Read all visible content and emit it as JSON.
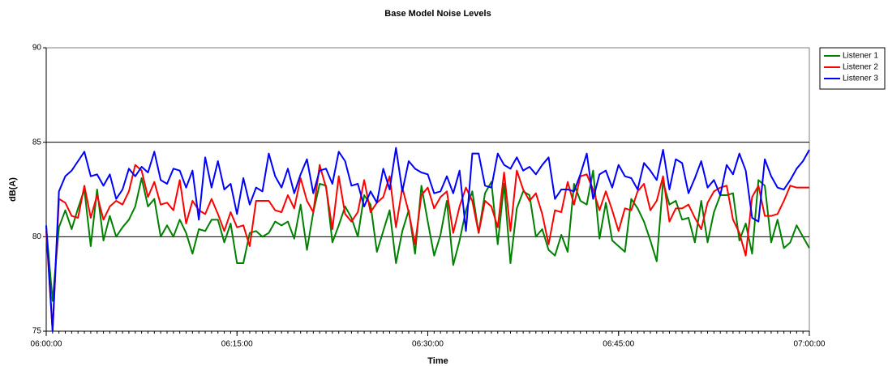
{
  "chart_data": {
    "type": "line",
    "title": "Base Model Noise Levels",
    "x_label": "Time",
    "y_label": "dB(A)",
    "x": [
      "06:00:00",
      "06:00:30",
      "06:01:00",
      "06:01:30",
      "06:02:00",
      "06:02:30",
      "06:03:00",
      "06:03:30",
      "06:04:00",
      "06:04:30",
      "06:05:00",
      "06:05:30",
      "06:06:00",
      "06:06:30",
      "06:07:00",
      "06:07:30",
      "06:08:00",
      "06:08:30",
      "06:09:00",
      "06:09:30",
      "06:10:00",
      "06:10:30",
      "06:11:00",
      "06:11:30",
      "06:12:00",
      "06:12:30",
      "06:13:00",
      "06:13:30",
      "06:14:00",
      "06:14:30",
      "06:15:00",
      "06:15:30",
      "06:16:00",
      "06:16:30",
      "06:17:00",
      "06:17:30",
      "06:18:00",
      "06:18:30",
      "06:19:00",
      "06:19:30",
      "06:20:00",
      "06:20:30",
      "06:21:00",
      "06:21:30",
      "06:22:00",
      "06:22:30",
      "06:23:00",
      "06:23:30",
      "06:24:00",
      "06:24:30",
      "06:25:00",
      "06:25:30",
      "06:26:00",
      "06:26:30",
      "06:27:00",
      "06:27:30",
      "06:28:00",
      "06:28:30",
      "06:29:00",
      "06:29:30",
      "06:30:00",
      "06:30:30",
      "06:31:00",
      "06:31:30",
      "06:32:00",
      "06:32:30",
      "06:33:00",
      "06:33:30",
      "06:34:00",
      "06:34:30",
      "06:35:00",
      "06:35:30",
      "06:36:00",
      "06:36:30",
      "06:37:00",
      "06:37:30",
      "06:38:00",
      "06:38:30",
      "06:39:00",
      "06:39:30",
      "06:40:00",
      "06:40:30",
      "06:41:00",
      "06:41:30",
      "06:42:00",
      "06:42:30",
      "06:43:00",
      "06:43:30",
      "06:44:00",
      "06:44:30",
      "06:45:00",
      "06:45:30",
      "06:46:00",
      "06:46:30",
      "06:47:00",
      "06:47:30",
      "06:48:00",
      "06:48:30",
      "06:49:00",
      "06:49:30",
      "06:50:00",
      "06:50:30",
      "06:51:00",
      "06:51:30",
      "06:52:00",
      "06:52:30",
      "06:53:00",
      "06:53:30",
      "06:54:00",
      "06:54:30",
      "06:55:00",
      "06:55:30",
      "06:56:00",
      "06:56:30",
      "06:57:00",
      "06:57:30",
      "06:58:00",
      "06:58:30",
      "06:59:00",
      "06:59:30",
      "07:00:00"
    ],
    "series": [
      {
        "name": "Listener 1",
        "color": "#008000",
        "values": [
          80.5,
          76.6,
          80.5,
          81.4,
          80.4,
          81.5,
          82.5,
          79.5,
          82.5,
          79.8,
          81.1,
          80.0,
          80.5,
          80.9,
          81.6,
          83.1,
          81.6,
          82.0,
          80.0,
          80.6,
          80.0,
          80.9,
          80.2,
          79.1,
          80.4,
          80.3,
          80.9,
          80.9,
          79.7,
          80.7,
          78.6,
          78.6,
          80.2,
          80.3,
          80.0,
          80.2,
          80.8,
          80.6,
          80.8,
          79.9,
          81.7,
          79.3,
          81.3,
          82.8,
          82.7,
          79.7,
          80.6,
          81.6,
          81.0,
          80.0,
          82.2,
          81.7,
          79.2,
          80.3,
          81.4,
          78.6,
          80.3,
          81.4,
          79.1,
          82.7,
          80.8,
          79.0,
          80.1,
          81.9,
          78.5,
          79.8,
          81.4,
          82.4,
          80.2,
          82.3,
          82.9,
          79.6,
          82.8,
          78.6,
          81.5,
          82.4,
          82.2,
          80.0,
          80.4,
          79.3,
          79.0,
          80.1,
          79.2,
          82.8,
          81.9,
          81.7,
          83.5,
          79.9,
          81.8,
          79.8,
          79.5,
          79.2,
          82.0,
          81.5,
          80.8,
          79.8,
          78.7,
          82.9,
          81.7,
          81.9,
          80.9,
          81.0,
          79.7,
          81.9,
          79.7,
          81.3,
          82.2,
          82.2,
          82.3,
          79.8,
          80.7,
          79.1,
          83.0,
          82.7,
          79.7,
          80.9,
          79.4,
          79.7,
          80.6,
          80.0,
          79.4
        ]
      },
      {
        "name": "Listener 2",
        "color": "#ff0000",
        "values": [
          80.3,
          75.0,
          82.0,
          81.8,
          81.1,
          81.0,
          82.7,
          81.0,
          82.2,
          80.9,
          81.6,
          81.9,
          81.7,
          82.4,
          83.8,
          83.5,
          82.1,
          82.9,
          81.7,
          81.8,
          81.4,
          83.0,
          80.7,
          81.9,
          81.4,
          81.2,
          82.0,
          81.2,
          80.3,
          81.3,
          80.5,
          80.6,
          79.5,
          81.9,
          81.9,
          81.9,
          81.4,
          81.3,
          82.2,
          81.5,
          83.1,
          81.9,
          81.3,
          83.8,
          82.6,
          80.4,
          83.2,
          81.2,
          80.8,
          81.3,
          83.0,
          81.3,
          81.8,
          82.1,
          83.2,
          80.5,
          82.6,
          81.3,
          79.6,
          82.2,
          82.6,
          81.5,
          82.1,
          82.4,
          80.2,
          81.6,
          82.6,
          81.9,
          80.2,
          81.9,
          81.6,
          80.5,
          83.4,
          80.3,
          83.5,
          82.5,
          81.9,
          82.3,
          81.2,
          79.6,
          81.4,
          81.3,
          82.9,
          81.7,
          83.2,
          83.3,
          82.5,
          81.4,
          82.4,
          81.4,
          80.3,
          81.5,
          81.4,
          82.4,
          82.8,
          81.4,
          81.9,
          83.2,
          80.8,
          81.5,
          81.5,
          81.7,
          81.0,
          80.4,
          81.8,
          82.4,
          82.6,
          82.7,
          80.9,
          80.2,
          79.0,
          82.1,
          82.7,
          81.1,
          81.1,
          81.2,
          81.9,
          82.7,
          82.6,
          82.6,
          82.6
        ]
      },
      {
        "name": "Listener 3",
        "color": "#0000ff",
        "values": [
          80.6,
          75.0,
          82.4,
          83.2,
          83.5,
          84.0,
          84.5,
          83.2,
          83.3,
          82.7,
          83.3,
          82.0,
          82.5,
          83.6,
          83.2,
          83.7,
          83.4,
          84.5,
          83.0,
          82.8,
          83.6,
          83.5,
          82.6,
          83.5,
          80.9,
          84.2,
          82.6,
          84.0,
          82.5,
          82.8,
          81.2,
          83.1,
          81.7,
          82.6,
          82.4,
          84.4,
          83.2,
          82.6,
          83.6,
          82.3,
          83.3,
          84.1,
          82.3,
          83.5,
          83.6,
          82.8,
          84.5,
          84.0,
          82.7,
          82.8,
          81.6,
          82.4,
          81.8,
          83.6,
          82.5,
          84.7,
          82.4,
          84.0,
          83.6,
          83.4,
          83.3,
          82.3,
          82.4,
          83.2,
          82.3,
          83.5,
          80.3,
          84.4,
          84.4,
          82.7,
          82.6,
          84.4,
          83.8,
          83.6,
          84.2,
          83.5,
          83.7,
          83.3,
          83.8,
          84.2,
          82.0,
          82.5,
          82.5,
          82.4,
          83.3,
          84.4,
          82.0,
          83.3,
          83.5,
          82.6,
          83.8,
          83.2,
          83.1,
          82.5,
          83.9,
          83.5,
          83.0,
          84.6,
          82.5,
          84.1,
          83.9,
          82.3,
          83.1,
          84.0,
          82.6,
          83.0,
          82.2,
          83.8,
          83.3,
          84.4,
          83.5,
          81.0,
          80.8,
          84.1,
          83.2,
          82.6,
          82.5,
          83.0,
          83.6,
          84.0,
          84.6
        ]
      }
    ],
    "xlim": [
      "06:00:00",
      "07:00:00"
    ],
    "xticks": [
      "06:00:00",
      "06:15:00",
      "06:30:00",
      "06:45:00",
      "07:00:00"
    ],
    "ylim": [
      75,
      90
    ],
    "yticks": [
      75,
      80,
      85,
      90
    ],
    "grid": true,
    "legend": "right"
  }
}
